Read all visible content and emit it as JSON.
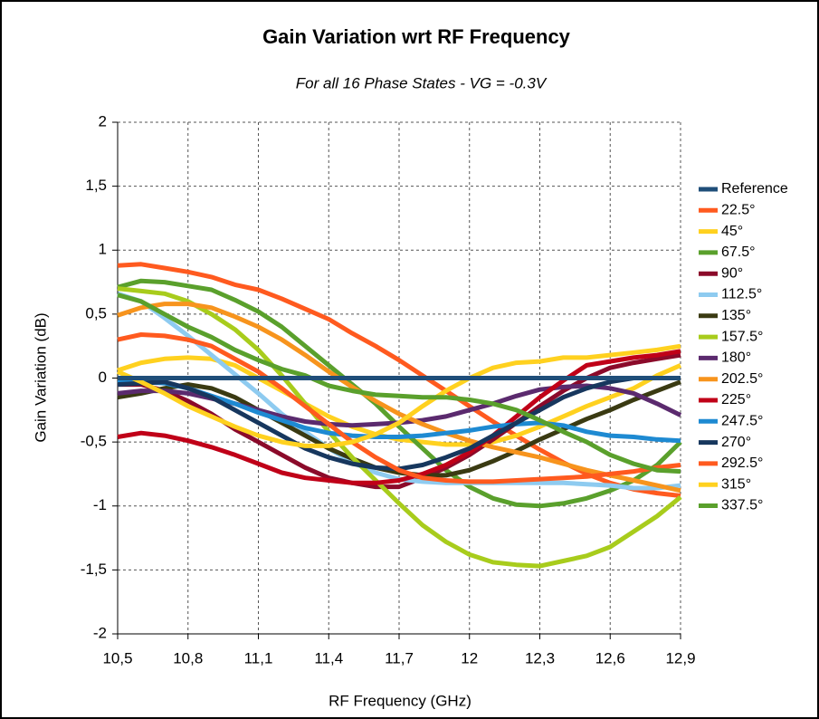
{
  "chart_data": {
    "type": "line",
    "title": "Gain Variation wrt RF Frequency",
    "subtitle": "For all 16 Phase States - VG = -0.3V",
    "x_label": "RF Frequency (GHz)",
    "y_label": "Gain Variation (dB)",
    "x": [
      10.5,
      10.6,
      10.7,
      10.8,
      10.9,
      11.0,
      11.1,
      11.2,
      11.3,
      11.4,
      11.5,
      11.6,
      11.7,
      11.8,
      11.9,
      12.0,
      12.1,
      12.2,
      12.3,
      12.4,
      12.5,
      12.6,
      12.7,
      12.8,
      12.9
    ],
    "xlim": [
      10.5,
      12.9
    ],
    "xticks": [
      {
        "value": 10.5,
        "label": "10,5"
      },
      {
        "value": 10.8,
        "label": "10,8"
      },
      {
        "value": 11.1,
        "label": "11,1"
      },
      {
        "value": 11.4,
        "label": "11,4"
      },
      {
        "value": 11.7,
        "label": "11,7"
      },
      12,
      {
        "value": 12.3,
        "label": "12,3"
      },
      {
        "value": 12.6,
        "label": "12,6"
      },
      {
        "value": 12.9,
        "label": "12,9"
      }
    ],
    "ylim": [
      -2,
      2
    ],
    "yticks": [
      -2,
      {
        "value": -1.5,
        "label": "-1,5"
      },
      -1,
      {
        "value": -0.5,
        "label": "-0,5"
      },
      0,
      {
        "value": 0.5,
        "label": "0,5"
      },
      1,
      {
        "value": 1.5,
        "label": "1,5"
      },
      2
    ],
    "grid": true,
    "legend": "right",
    "series": [
      {
        "name": "Reference",
        "color": "#1f4e79",
        "values": [
          0,
          0,
          0,
          0,
          0,
          0,
          0,
          0,
          0,
          0,
          0,
          0,
          0,
          0,
          0,
          0,
          0,
          0,
          0,
          0,
          0,
          0,
          0,
          0,
          0
        ]
      },
      {
        "name": "22.5°",
        "color": "#ff5a1f",
        "values": [
          0.88,
          0.89,
          0.86,
          0.83,
          0.79,
          0.73,
          0.69,
          0.62,
          0.54,
          0.46,
          0.35,
          0.25,
          0.14,
          0.02,
          -0.1,
          -0.22,
          -0.34,
          -0.45,
          -0.56,
          -0.66,
          -0.75,
          -0.82,
          -0.87,
          -0.9,
          -0.92
        ]
      },
      {
        "name": "45°",
        "color": "#ffd11f",
        "values": [
          0.06,
          0.12,
          0.15,
          0.16,
          0.15,
          0.1,
          0.0,
          -0.1,
          -0.2,
          -0.3,
          -0.38,
          -0.44,
          -0.48,
          -0.5,
          -0.52,
          -0.52,
          -0.5,
          -0.45,
          -0.38,
          -0.3,
          -0.22,
          -0.15,
          -0.08,
          0.02,
          0.1
        ]
      },
      {
        "name": "67.5°",
        "color": "#5aa02c",
        "values": [
          0.71,
          0.76,
          0.75,
          0.72,
          0.69,
          0.61,
          0.52,
          0.4,
          0.25,
          0.1,
          -0.05,
          -0.2,
          -0.38,
          -0.55,
          -0.72,
          -0.85,
          -0.94,
          -0.99,
          -1.0,
          -0.98,
          -0.94,
          -0.88,
          -0.8,
          -0.68,
          -0.5
        ]
      },
      {
        "name": "90°",
        "color": "#8b0a2a",
        "values": [
          -0.05,
          -0.05,
          -0.1,
          -0.18,
          -0.28,
          -0.4,
          -0.5,
          -0.6,
          -0.7,
          -0.78,
          -0.82,
          -0.85,
          -0.85,
          -0.78,
          -0.7,
          -0.6,
          -0.48,
          -0.35,
          -0.22,
          -0.1,
          0.0,
          0.08,
          0.12,
          0.15,
          0.18
        ]
      },
      {
        "name": "112.5°",
        "color": "#8ecbf0",
        "values": [
          0.66,
          0.6,
          0.47,
          0.33,
          0.18,
          0.03,
          -0.12,
          -0.28,
          -0.42,
          -0.55,
          -0.66,
          -0.74,
          -0.79,
          -0.81,
          -0.82,
          -0.82,
          -0.82,
          -0.82,
          -0.82,
          -0.82,
          -0.83,
          -0.84,
          -0.86,
          -0.86,
          -0.84
        ]
      },
      {
        "name": "135°",
        "color": "#3a3a12",
        "values": [
          -0.15,
          -0.12,
          -0.08,
          -0.05,
          -0.08,
          -0.15,
          -0.25,
          -0.35,
          -0.45,
          -0.55,
          -0.63,
          -0.7,
          -0.74,
          -0.76,
          -0.76,
          -0.72,
          -0.65,
          -0.57,
          -0.48,
          -0.4,
          -0.32,
          -0.25,
          -0.17,
          -0.1,
          -0.03
        ]
      },
      {
        "name": "157.5°",
        "color": "#a8cc1c",
        "values": [
          0.7,
          0.68,
          0.66,
          0.6,
          0.5,
          0.38,
          0.22,
          0.02,
          -0.2,
          -0.42,
          -0.62,
          -0.8,
          -0.98,
          -1.15,
          -1.28,
          -1.38,
          -1.44,
          -1.46,
          -1.47,
          -1.43,
          -1.39,
          -1.32,
          -1.2,
          -1.08,
          -0.93
        ]
      },
      {
        "name": "180°",
        "color": "#5b2a6e",
        "values": [
          -0.12,
          -0.1,
          -0.1,
          -0.12,
          -0.16,
          -0.2,
          -0.25,
          -0.3,
          -0.34,
          -0.36,
          -0.37,
          -0.36,
          -0.35,
          -0.33,
          -0.3,
          -0.25,
          -0.2,
          -0.14,
          -0.09,
          -0.07,
          -0.06,
          -0.08,
          -0.12,
          -0.2,
          -0.29
        ]
      },
      {
        "name": "202.5°",
        "color": "#f7941d",
        "values": [
          0.49,
          0.55,
          0.58,
          0.58,
          0.55,
          0.48,
          0.4,
          0.3,
          0.18,
          0.05,
          -0.07,
          -0.18,
          -0.28,
          -0.36,
          -0.43,
          -0.49,
          -0.54,
          -0.58,
          -0.62,
          -0.67,
          -0.72,
          -0.76,
          -0.8,
          -0.84,
          -0.88
        ]
      },
      {
        "name": "225°",
        "color": "#c00018",
        "values": [
          -0.46,
          -0.43,
          -0.45,
          -0.49,
          -0.54,
          -0.6,
          -0.67,
          -0.74,
          -0.78,
          -0.8,
          -0.82,
          -0.82,
          -0.8,
          -0.75,
          -0.68,
          -0.58,
          -0.45,
          -0.3,
          -0.15,
          -0.02,
          0.1,
          0.13,
          0.16,
          0.18,
          0.21
        ]
      },
      {
        "name": "247.5°",
        "color": "#1e8ad2",
        "values": [
          -0.02,
          -0.03,
          -0.04,
          -0.08,
          -0.14,
          -0.2,
          -0.27,
          -0.33,
          -0.39,
          -0.43,
          -0.45,
          -0.46,
          -0.46,
          -0.45,
          -0.43,
          -0.41,
          -0.38,
          -0.36,
          -0.35,
          -0.37,
          -0.42,
          -0.45,
          -0.46,
          -0.48,
          -0.49
        ]
      },
      {
        "name": "270°",
        "color": "#17375e",
        "values": [
          -0.05,
          -0.04,
          -0.03,
          -0.08,
          -0.15,
          -0.25,
          -0.35,
          -0.45,
          -0.55,
          -0.62,
          -0.67,
          -0.7,
          -0.71,
          -0.68,
          -0.62,
          -0.55,
          -0.45,
          -0.35,
          -0.25,
          -0.15,
          -0.08,
          -0.03,
          0.0,
          0.0,
          0.0
        ]
      },
      {
        "name": "292.5°",
        "color": "#ff5a1f",
        "values": [
          0.3,
          0.34,
          0.33,
          0.3,
          0.25,
          0.15,
          0.05,
          -0.08,
          -0.22,
          -0.36,
          -0.5,
          -0.62,
          -0.72,
          -0.78,
          -0.8,
          -0.81,
          -0.81,
          -0.8,
          -0.79,
          -0.78,
          -0.77,
          -0.75,
          -0.73,
          -0.7,
          -0.68
        ]
      },
      {
        "name": "315°",
        "color": "#ffd11f",
        "values": [
          0.05,
          -0.03,
          -0.12,
          -0.22,
          -0.3,
          -0.38,
          -0.45,
          -0.5,
          -0.53,
          -0.53,
          -0.5,
          -0.44,
          -0.35,
          -0.22,
          -0.1,
          0.0,
          0.08,
          0.12,
          0.13,
          0.16,
          0.16,
          0.18,
          0.2,
          0.22,
          0.25
        ]
      },
      {
        "name": "337.5°",
        "color": "#5aa02c",
        "values": [
          0.65,
          0.6,
          0.5,
          0.4,
          0.32,
          0.22,
          0.14,
          0.07,
          0.02,
          -0.06,
          -0.1,
          -0.13,
          -0.14,
          -0.15,
          -0.15,
          -0.17,
          -0.2,
          -0.25,
          -0.33,
          -0.42,
          -0.5,
          -0.6,
          -0.67,
          -0.72,
          -0.73
        ]
      }
    ]
  }
}
